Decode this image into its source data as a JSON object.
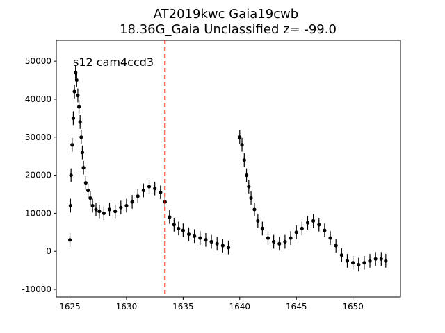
{
  "chart_data": {
    "type": "scatter",
    "title": "AT2019kwc  Gaia19cwb",
    "subtitle": "18.36G_Gaia Unclassified z= -99.0",
    "xlabel": "",
    "ylabel": "",
    "xlim": [
      1623.8,
      1654.2
    ],
    "ylim": [
      -12000,
      55500
    ],
    "xticks": [
      1625,
      1630,
      1635,
      1640,
      1645,
      1650
    ],
    "yticks": [
      -10000,
      0,
      10000,
      20000,
      30000,
      40000,
      50000
    ],
    "annotation": "s12 cam4ccd3",
    "vline": {
      "x": 1633.4,
      "color": "#ff0000",
      "style": "dashed"
    },
    "grid": false,
    "legend": "none",
    "marker_color": "#000000",
    "series": [
      {
        "x": [
          1625.0,
          1625.05,
          1625.1,
          1625.2,
          1625.3,
          1625.4,
          1625.5,
          1625.6,
          1625.7,
          1625.8,
          1625.9,
          1626.0,
          1626.1,
          1626.2,
          1626.4,
          1626.6,
          1626.8,
          1627.0,
          1627.3,
          1627.6,
          1628.0,
          1628.5,
          1629.0,
          1629.5,
          1630.0,
          1630.5,
          1631.0,
          1631.5,
          1632.0,
          1632.5,
          1633.0,
          1633.4,
          1633.8,
          1634.2,
          1634.6,
          1635.0,
          1635.5,
          1636.0,
          1636.5,
          1637.0,
          1637.5,
          1638.0,
          1638.5,
          1639.0,
          1640.0,
          1640.2,
          1640.4,
          1640.6,
          1640.8,
          1641.0,
          1641.3,
          1641.6,
          1642.0,
          1642.5,
          1643.0,
          1643.5,
          1644.0,
          1644.5,
          1645.0,
          1645.5,
          1646.0,
          1646.5,
          1647.0,
          1647.5,
          1648.0,
          1648.5,
          1649.0,
          1649.5,
          1650.0,
          1650.5,
          1651.0,
          1651.5,
          1652.0,
          1652.5,
          1652.9
        ],
        "y": [
          3000,
          12000,
          20000,
          28000,
          35000,
          42000,
          47000,
          45000,
          41000,
          38000,
          34000,
          30000,
          26000,
          22000,
          18000,
          16000,
          14000,
          12000,
          11000,
          10500,
          10000,
          11000,
          10500,
          11500,
          12000,
          13000,
          14500,
          16000,
          17000,
          16500,
          15500,
          13000,
          9000,
          7000,
          6000,
          5500,
          4500,
          4000,
          3500,
          3000,
          2500,
          2000,
          1500,
          1000,
          30000,
          28000,
          24000,
          20000,
          17000,
          14000,
          11000,
          8000,
          6000,
          3500,
          2500,
          2000,
          2500,
          3500,
          5000,
          6000,
          7500,
          8000,
          7000,
          5500,
          3500,
          1500,
          -1000,
          -2500,
          -3000,
          -3500,
          -3000,
          -2500,
          -2000,
          -2000,
          -2500
        ]
      }
    ]
  }
}
